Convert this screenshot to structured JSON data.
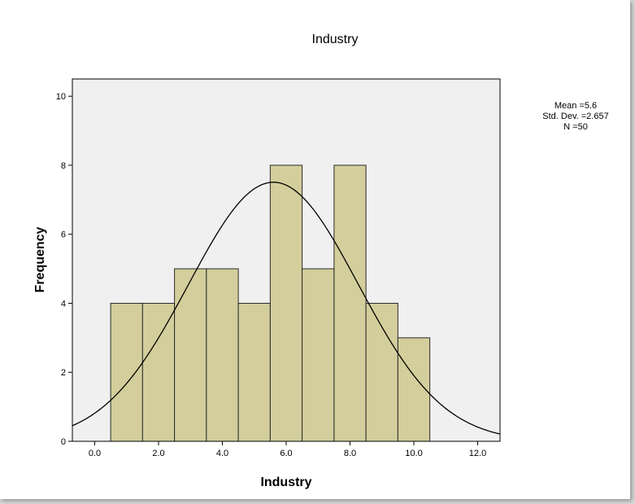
{
  "chart_data": {
    "type": "bar",
    "title": "Industry",
    "xlabel": "Industry",
    "ylabel": "Frequency",
    "x_ticks": [
      "0.0",
      "2.0",
      "4.0",
      "6.0",
      "8.0",
      "10.0",
      "12.0"
    ],
    "x_tick_values": [
      0,
      2,
      4,
      6,
      8,
      10,
      12
    ],
    "y_ticks": [
      "0",
      "2",
      "4",
      "6",
      "8",
      "10"
    ],
    "y_tick_values": [
      0,
      2,
      4,
      6,
      8,
      10
    ],
    "xlim": [
      -0.7,
      12.7
    ],
    "ylim": [
      0,
      10.5
    ],
    "bins": [
      {
        "start": 0.5,
        "end": 1.5,
        "count": 4
      },
      {
        "start": 1.5,
        "end": 2.5,
        "count": 4
      },
      {
        "start": 2.5,
        "end": 3.5,
        "count": 5
      },
      {
        "start": 3.5,
        "end": 4.5,
        "count": 5
      },
      {
        "start": 4.5,
        "end": 5.5,
        "count": 4
      },
      {
        "start": 5.5,
        "end": 6.5,
        "count": 8
      },
      {
        "start": 6.5,
        "end": 7.5,
        "count": 5
      },
      {
        "start": 7.5,
        "end": 8.5,
        "count": 8
      },
      {
        "start": 8.5,
        "end": 9.5,
        "count": 4
      },
      {
        "start": 9.5,
        "end": 10.5,
        "count": 3
      }
    ],
    "normal_curve": {
      "mean": 5.6,
      "std_dev": 2.657,
      "n": 50,
      "bin_width": 1
    },
    "stats_text": [
      "Mean =5.6",
      "Std. Dev. =2.657",
      "N =50"
    ],
    "grid": false,
    "colors": {
      "bar_fill": "#d3ce9b",
      "bar_stroke": "#2b2b2b",
      "plot_background": "#f0f0f0",
      "curve": "#000000"
    }
  }
}
